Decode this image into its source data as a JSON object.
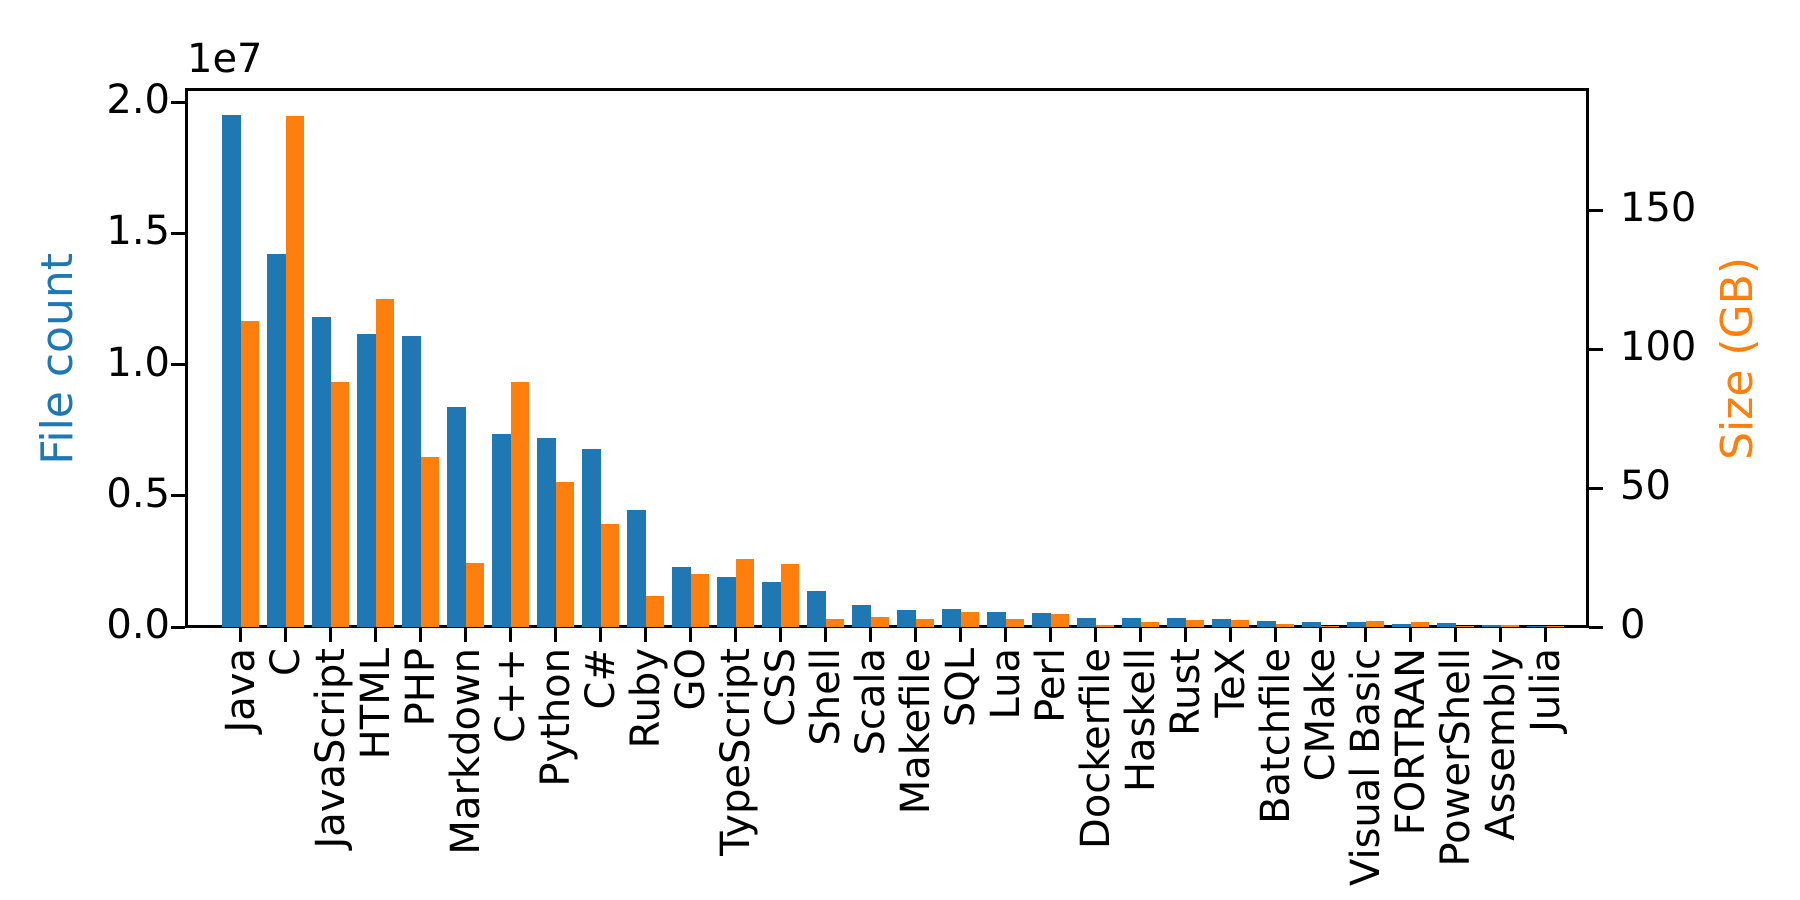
{
  "chart_data": {
    "type": "bar",
    "title": "",
    "description": "Dual-axis grouped bar chart of programming language file counts (blue, left axis) and dataset sizes in GB (orange, right axis)",
    "categories": [
      "Java",
      "C",
      "JavaScript",
      "HTML",
      "PHP",
      "Markdown",
      "C++",
      "Python",
      "C#",
      "Ruby",
      "GO",
      "TypeScript",
      "CSS",
      "Shell",
      "Scala",
      "Makefile",
      "SQL",
      "Lua",
      "Perl",
      "Dockerfile",
      "Haskell",
      "Rust",
      "TeX",
      "Batchfile",
      "CMake",
      "Visual Basic",
      "FORTRAN",
      "PowerShell",
      "Assembly",
      "Julia"
    ],
    "series": [
      {
        "name": "File count",
        "axis": "left",
        "color": "#1f77b4",
        "values": [
          19500000,
          14200000,
          11800000,
          11150000,
          11100000,
          8400000,
          7350000,
          7200000,
          6800000,
          4450000,
          2270000,
          1920000,
          1700000,
          1370000,
          830000,
          650000,
          670000,
          580000,
          540000,
          350000,
          330000,
          360000,
          290000,
          230000,
          190000,
          200000,
          120000,
          140000,
          80000,
          30000
        ]
      },
      {
        "name": "Size (GB)",
        "axis": "right",
        "color": "#ff7f0e",
        "values": [
          110,
          184,
          88,
          118,
          61,
          23,
          88,
          52,
          37,
          11,
          19,
          24.5,
          22.7,
          2.8,
          3.7,
          2.8,
          5.3,
          2.9,
          4.7,
          0.7,
          1.9,
          2.5,
          2.5,
          1.2,
          0.5,
          2.2,
          1.8,
          0.4,
          0.8,
          0.3
        ]
      }
    ],
    "left_axis": {
      "label": "File count",
      "label_color": "#1f77b4",
      "offset_text": "1e7",
      "tick_labels": [
        "0.0",
        "0.5",
        "1.0",
        "1.5",
        "2.0"
      ],
      "tick_values": [
        0,
        5000000,
        10000000,
        15000000,
        20000000
      ],
      "max": 20460000
    },
    "right_axis": {
      "label": "Size (GB)",
      "label_color": "#ff7f0e",
      "tick_labels": [
        "0",
        "50",
        "100",
        "150"
      ],
      "tick_values": [
        0,
        50,
        100,
        150
      ],
      "max": 193.2
    },
    "xlabel_rotation": 90,
    "grid": false,
    "legend": "none",
    "background": "#ffffff",
    "spine_color": "#000000"
  }
}
